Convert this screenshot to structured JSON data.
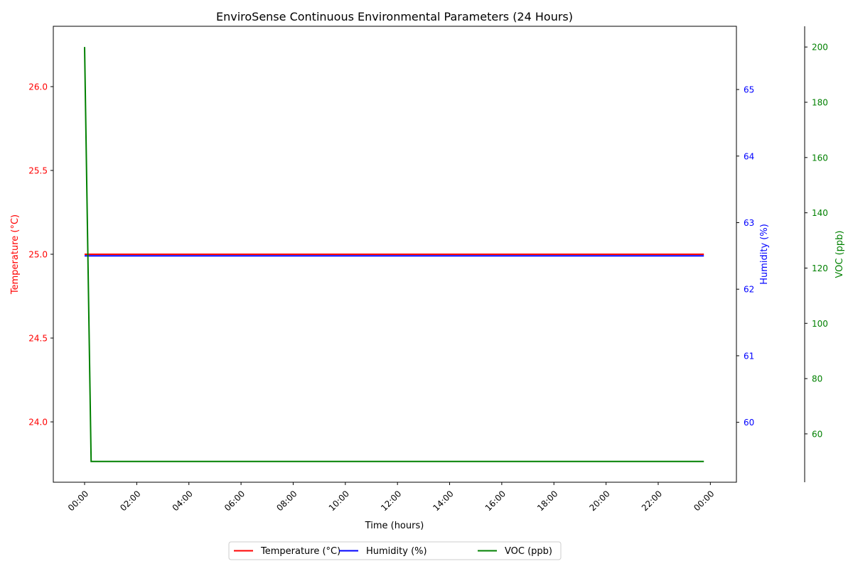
{
  "chart_data": {
    "type": "line",
    "title": "EnviroSense Continuous Environmental Parameters (24 Hours)",
    "xlabel": "Time (hours)",
    "x_ticks": [
      "00:00",
      "02:00",
      "04:00",
      "06:00",
      "08:00",
      "10:00",
      "12:00",
      "14:00",
      "16:00",
      "18:00",
      "20:00",
      "22:00",
      "00:00"
    ],
    "x_range_hours": [
      -1.2,
      25.0
    ],
    "grid": false,
    "legend_position": "bottom-center",
    "axes": {
      "temperature": {
        "label": "Temperature (°C)",
        "color": "#ff0000",
        "ylim": [
          23.64,
          26.36
        ],
        "ticks": [
          "24.0",
          "24.5",
          "25.0",
          "25.5",
          "26.0"
        ],
        "tick_values": [
          24.0,
          24.5,
          25.0,
          25.5,
          26.0
        ]
      },
      "humidity": {
        "label": "Humidity (%)",
        "color": "#0000ff",
        "ylim": [
          59.1,
          65.95
        ],
        "ticks": [
          "60",
          "61",
          "62",
          "63",
          "64",
          "65"
        ],
        "tick_values": [
          60,
          61,
          62,
          63,
          64,
          65
        ]
      },
      "voc": {
        "label": "VOC (ppb)",
        "color": "#008000",
        "ylim": [
          42.5,
          207.5
        ],
        "ticks": [
          "60",
          "80",
          "100",
          "120",
          "140",
          "160",
          "180",
          "200"
        ],
        "tick_values": [
          60,
          80,
          100,
          120,
          140,
          160,
          180,
          200
        ]
      }
    },
    "series": [
      {
        "name": "Temperature (°C)",
        "axis": "temperature",
        "color": "#ff0000",
        "x_hours": [
          0,
          23.75
        ],
        "values": [
          25.0,
          25.0
        ]
      },
      {
        "name": "Humidity (%)",
        "axis": "humidity",
        "color": "#0000ff",
        "x_hours": [
          0,
          23.75
        ],
        "values": [
          62.5,
          62.5
        ]
      },
      {
        "name": "VOC (ppb)",
        "axis": "voc",
        "color": "#008000",
        "x_hours": [
          0,
          0.25,
          23.75
        ],
        "values": [
          200,
          50,
          50
        ]
      }
    ]
  }
}
